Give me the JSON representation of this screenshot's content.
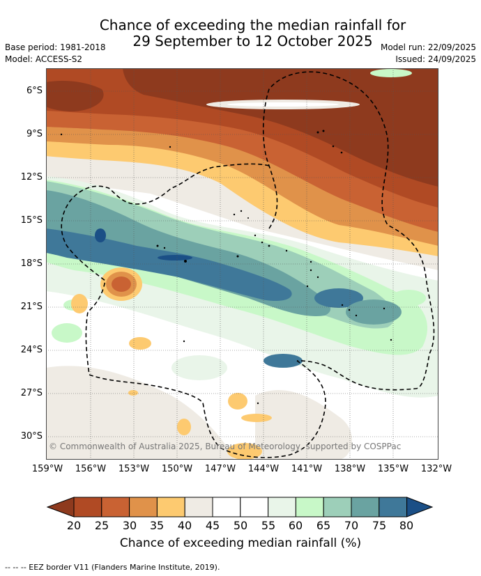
{
  "header": {
    "title_line1": "Chance of exceeding the median rainfall for",
    "title_line2": "29 September to 12 October 2025",
    "base_period": "Base period: 1981-2018",
    "model": "Model: ACCESS-S2",
    "model_run": "Model run: 22/09/2025",
    "issued": "Issued: 24/09/2025"
  },
  "map": {
    "lat_labels": [
      "6°S",
      "9°S",
      "12°S",
      "15°S",
      "18°S",
      "21°S",
      "24°S",
      "27°S",
      "30°S"
    ],
    "lon_labels": [
      "159°W",
      "156°W",
      "153°W",
      "150°W",
      "147°W",
      "144°W",
      "141°W",
      "138°W",
      "135°W",
      "132°W"
    ],
    "copyright": "© Commonwealth of Australia 2025, Bureau of Meteorology, supported by COSPPac",
    "colors": {
      "c15": "#8e3a1e",
      "c20": "#b04a24",
      "c25": "#c96233",
      "c30": "#e0924a",
      "c35": "#fdca70",
      "c40": "#efebe4",
      "c45": "#ffffff",
      "c55": "#e9f5e9",
      "c60": "#c8f8c8",
      "c65": "#9dcfb9",
      "c70": "#6aa3a1",
      "c75": "#3f7899",
      "c80": "#1b4f86"
    }
  },
  "colorbar": {
    "ticks": [
      "20",
      "25",
      "30",
      "35",
      "40",
      "45",
      "50",
      "55",
      "60",
      "65",
      "70",
      "75",
      "80"
    ],
    "colors": [
      "#8e3a1e",
      "#b04a24",
      "#c96233",
      "#e0924a",
      "#fdca70",
      "#efebe4",
      "#ffffff",
      "#ffffff",
      "#e9f5e9",
      "#c8f8c8",
      "#9dcfb9",
      "#6aa3a1",
      "#3f7899",
      "#1b4f86"
    ],
    "label": "Chance of exceeding median rainfall (%)"
  },
  "footer": {
    "legend": "--  --  -- EEZ border V11 (Flanders Marine Institute, 2019)."
  }
}
